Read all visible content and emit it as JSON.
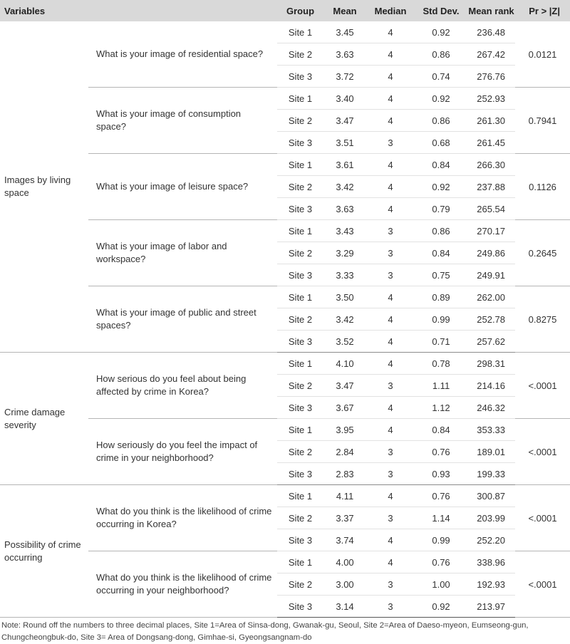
{
  "headers": {
    "variables": "Variables",
    "group": "Group",
    "mean": "Mean",
    "median": "Median",
    "std_dev": "Std Dev.",
    "mean_rank": "Mean rank",
    "pr": "Pr > |Z|"
  },
  "sections": [
    {
      "variable": "Images by living space",
      "questions": [
        {
          "text": "What is your image of residential space?",
          "pr": "0.0121",
          "rows": [
            {
              "group": "Site 1",
              "mean": "3.45",
              "median": "4",
              "std": "0.92",
              "rank": "236.48"
            },
            {
              "group": "Site 2",
              "mean": "3.63",
              "median": "4",
              "std": "0.86",
              "rank": "267.42"
            },
            {
              "group": "Site 3",
              "mean": "3.72",
              "median": "4",
              "std": "0.74",
              "rank": "276.76"
            }
          ]
        },
        {
          "text": "What is your image of consumption space?",
          "pr": "0.7941",
          "rows": [
            {
              "group": "Site 1",
              "mean": "3.40",
              "median": "4",
              "std": "0.92",
              "rank": "252.93"
            },
            {
              "group": "Site 2",
              "mean": "3.47",
              "median": "4",
              "std": "0.86",
              "rank": "261.30"
            },
            {
              "group": "Site 3",
              "mean": "3.51",
              "median": "3",
              "std": "0.68",
              "rank": "261.45"
            }
          ]
        },
        {
          "text": "What is your image of leisure space?",
          "pr": "0.1126",
          "rows": [
            {
              "group": "Site 1",
              "mean": "3.61",
              "median": "4",
              "std": "0.84",
              "rank": "266.30"
            },
            {
              "group": "Site 2",
              "mean": "3.42",
              "median": "4",
              "std": "0.92",
              "rank": "237.88"
            },
            {
              "group": "Site 3",
              "mean": "3.63",
              "median": "4",
              "std": "0.79",
              "rank": "265.54"
            }
          ]
        },
        {
          "text": "What is your image of labor and workspace?",
          "pr": "0.2645",
          "rows": [
            {
              "group": "Site 1",
              "mean": "3.43",
              "median": "3",
              "std": "0.86",
              "rank": "270.17"
            },
            {
              "group": "Site 2",
              "mean": "3.29",
              "median": "3",
              "std": "0.84",
              "rank": "249.86"
            },
            {
              "group": "Site 3",
              "mean": "3.33",
              "median": "3",
              "std": "0.75",
              "rank": "249.91"
            }
          ]
        },
        {
          "text": "What is your image of public and street spaces?",
          "pr": "0.8275",
          "rows": [
            {
              "group": "Site 1",
              "mean": "3.50",
              "median": "4",
              "std": "0.89",
              "rank": "262.00"
            },
            {
              "group": "Site 2",
              "mean": "3.42",
              "median": "4",
              "std": "0.99",
              "rank": "252.78"
            },
            {
              "group": "Site 3",
              "mean": "3.52",
              "median": "4",
              "std": "0.71",
              "rank": "257.62"
            }
          ]
        }
      ]
    },
    {
      "variable": "Crime damage severity",
      "questions": [
        {
          "text": "How serious do you feel about being affected by crime in Korea?",
          "pr": "<.0001",
          "rows": [
            {
              "group": "Site 1",
              "mean": "4.10",
              "median": "4",
              "std": "0.78",
              "rank": "298.31"
            },
            {
              "group": "Site 2",
              "mean": "3.47",
              "median": "3",
              "std": "1.11",
              "rank": "214.16"
            },
            {
              "group": "Site 3",
              "mean": "3.67",
              "median": "4",
              "std": "1.12",
              "rank": "246.32"
            }
          ]
        },
        {
          "text": "How seriously do you feel the impact of crime in your neighborhood?",
          "pr": "<.0001",
          "rows": [
            {
              "group": "Site 1",
              "mean": "3.95",
              "median": "4",
              "std": "0.84",
              "rank": "353.33"
            },
            {
              "group": "Site 2",
              "mean": "2.84",
              "median": "3",
              "std": "0.76",
              "rank": "189.01"
            },
            {
              "group": "Site 3",
              "mean": "2.83",
              "median": "3",
              "std": "0.93",
              "rank": "199.33"
            }
          ]
        }
      ]
    },
    {
      "variable": "Possibility of crime occurring",
      "questions": [
        {
          "text": "What do you think is the likelihood of crime occurring in Korea?",
          "pr": "<.0001",
          "rows": [
            {
              "group": "Site 1",
              "mean": "4.11",
              "median": "4",
              "std": "0.76",
              "rank": "300.87"
            },
            {
              "group": "Site 2",
              "mean": "3.37",
              "median": "3",
              "std": "1.14",
              "rank": "203.99"
            },
            {
              "group": "Site 3",
              "mean": "3.74",
              "median": "4",
              "std": "0.99",
              "rank": "252.20"
            }
          ]
        },
        {
          "text": "What do you think is the likelihood of crime occurring in your neighborhood?",
          "pr": "<.0001",
          "rows": [
            {
              "group": "Site 1",
              "mean": "4.00",
              "median": "4",
              "std": "0.76",
              "rank": "338.96"
            },
            {
              "group": "Site 2",
              "mean": "3.00",
              "median": "3",
              "std": "1.00",
              "rank": "192.93"
            },
            {
              "group": "Site 3",
              "mean": "3.14",
              "median": "3",
              "std": "0.92",
              "rank": "213.97"
            }
          ]
        }
      ]
    }
  ],
  "note": "Note: Round off the numbers to three decimal places, Site 1=Area of Sinsa-dong, Gwanak-gu, Seoul, Site 2=Area of Daeso-myeon, Eumseong-gun, Chungcheongbuk-do, Site 3= Area of Dongsang-dong, Gimhae-si, Gyeongsangnam-do"
}
